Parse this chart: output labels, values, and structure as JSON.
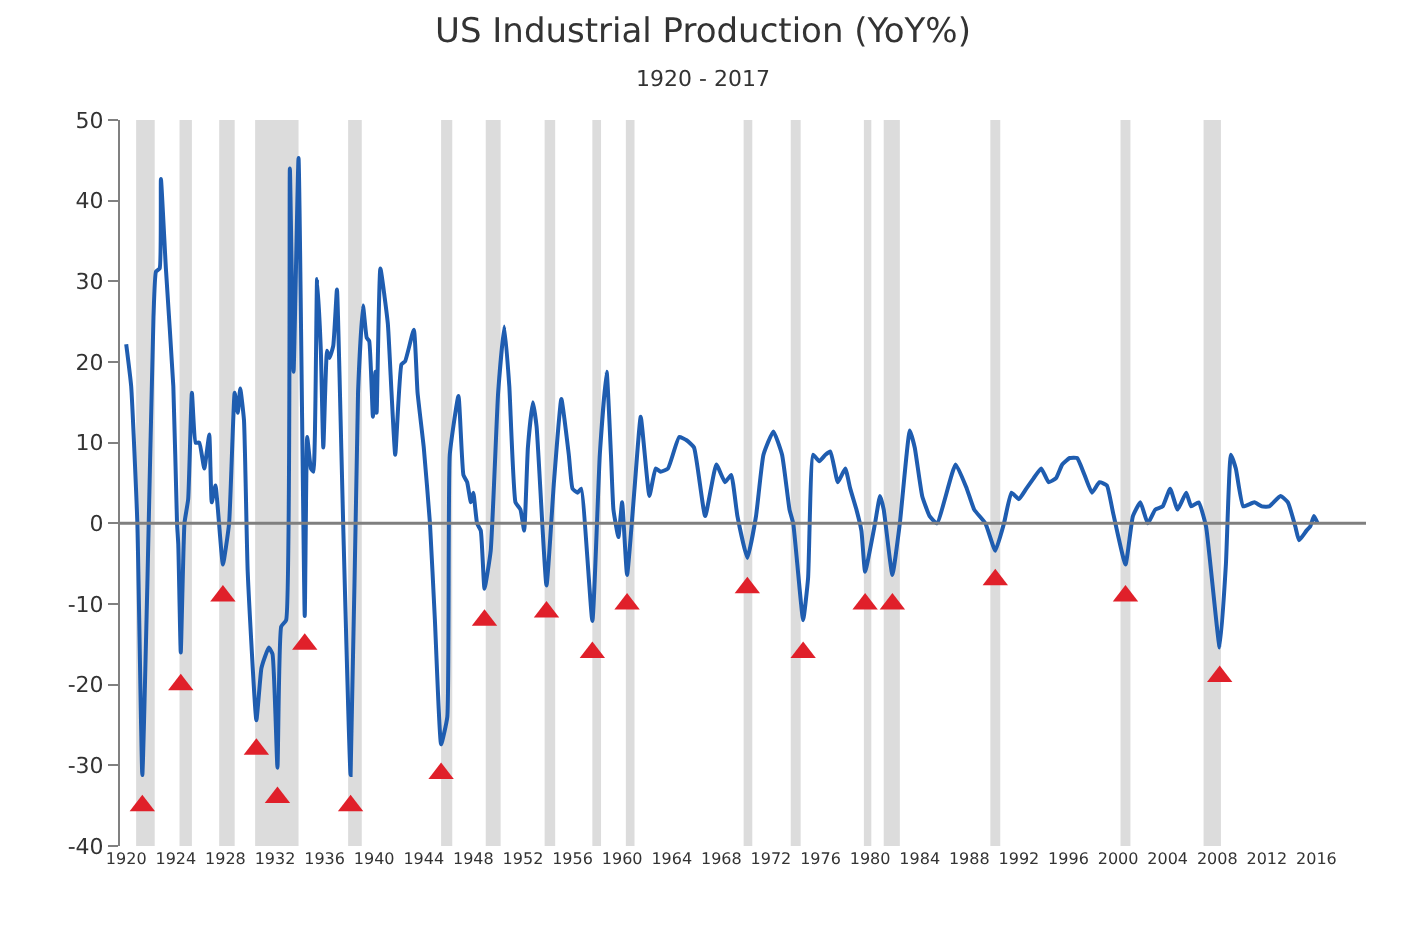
{
  "chart_data": {
    "type": "line",
    "title": "US Industrial Production (YoY%)",
    "subtitle": "1920 - 2017",
    "xlim": [
      1919.5,
      2020
    ],
    "xticks": [
      1920,
      1924,
      1928,
      1932,
      1936,
      1940,
      1944,
      1948,
      1952,
      1956,
      1960,
      1964,
      1968,
      1972,
      1976,
      1980,
      1984,
      1988,
      1992,
      1996,
      2000,
      2004,
      2008,
      2012,
      2016
    ],
    "ylim": [
      -40,
      50
    ],
    "yticks": [
      -40,
      -30,
      -20,
      -10,
      0,
      10,
      20,
      30,
      40,
      50
    ],
    "grid": false,
    "series": [
      {
        "color": "#1f5db0",
        "x": [
          1920.0,
          1920.4,
          1920.9,
          1921.3,
          1921.7,
          1922.2,
          1922.4,
          1922.7,
          1922.8,
          1923.2,
          1923.8,
          1924.1,
          1924.2,
          1924.4,
          1924.7,
          1925.0,
          1925.3,
          1925.6,
          1925.9,
          1926.3,
          1926.7,
          1926.9,
          1927.2,
          1927.8,
          1928.3,
          1928.75,
          1929.0,
          1929.2,
          1929.5,
          1929.8,
          1930.5,
          1930.9,
          1931.2,
          1931.5,
          1931.8,
          1932.2,
          1932.5,
          1932.9,
          1933.2,
          1933.5,
          1933.9,
          1934.4,
          1934.6,
          1934.9,
          1935.1,
          1935.4,
          1935.7,
          1935.9,
          1936.2,
          1936.4,
          1936.7,
          1937.0,
          1937.2,
          1937.5,
          1938.1,
          1938.7,
          1939.1,
          1939.4,
          1939.6,
          1939.9,
          1940.1,
          1940.2,
          1940.5,
          1941.1,
          1941.4,
          1941.7,
          1942.2,
          1942.5,
          1943.2,
          1943.5,
          1944.0,
          1944.5,
          1944.9,
          1945.4,
          1945.9,
          1946.1,
          1946.8,
          1947.2,
          1947.5,
          1947.8,
          1948.0,
          1948.3,
          1948.6,
          1948.9,
          1949.4,
          1950.0,
          1950.5,
          1950.9,
          1951.4,
          1951.8,
          1952.1,
          1952.4,
          1952.8,
          1953.1,
          1953.9,
          1954.5,
          1955.1,
          1955.7,
          1956.0,
          1956.4,
          1956.7,
          1957.6,
          1958.2,
          1958.75,
          1959.1,
          1959.3,
          1959.7,
          1960.0,
          1960.4,
          1961.0,
          1961.5,
          1962.2,
          1962.7,
          1963.1,
          1963.7,
          1964.6,
          1965.2,
          1965.8,
          1966.7,
          1967.6,
          1968.3,
          1968.8,
          1969.3,
          1970.1,
          1970.8,
          1971.4,
          1972.2,
          1972.9,
          1973.5,
          1973.8,
          1974.6,
          1975.0,
          1975.4,
          1975.9,
          1976.4,
          1976.8,
          1977.4,
          1978.0,
          1978.4,
          1978.9,
          1979.3,
          1979.6,
          1980.4,
          1980.8,
          1981.1,
          1981.8,
          1982.4,
          1983.2,
          1983.6,
          1984.2,
          1984.8,
          1985.4,
          1986.9,
          1987.8,
          1988.4,
          1989.3,
          1990.1,
          1990.8,
          1991.4,
          1992.0,
          1992.6,
          1993.2,
          1993.8,
          1994.4,
          1995.0,
          1995.5,
          1996.1,
          1996.7,
          1997.3,
          1997.9,
          1998.5,
          1999.1,
          1999.6,
          2000.6,
          2001.2,
          2001.8,
          2002.4,
          2003.0,
          2003.6,
          2004.2,
          2004.8,
          2005.5,
          2005.9,
          2006.5,
          2007.1,
          2008.2,
          2008.7,
          2009.1,
          2009.5,
          2010.1,
          2011.0,
          2011.6,
          2012.2,
          2013.1,
          2013.7,
          2014.3,
          2014.6,
          2015.2,
          2015.5,
          2015.8,
          2016.1
        ],
        "values": [
          22.2,
          17,
          0,
          -31.2,
          -8,
          25.6,
          31.2,
          31.6,
          42.7,
          31.6,
          17,
          0,
          -2.6,
          -16,
          0,
          3,
          16.2,
          10,
          10,
          6.8,
          11,
          2.6,
          4.7,
          -5.1,
          0,
          16.2,
          13.7,
          16.7,
          12.8,
          -6,
          -24.4,
          -18,
          -16.5,
          -15.4,
          -16.2,
          -30.3,
          -12.8,
          -12,
          44,
          18.8,
          45.3,
          -11.5,
          10.7,
          6.8,
          6.4,
          30.3,
          21.4,
          9.4,
          21.4,
          20.5,
          22,
          29,
          18.8,
          0,
          -31.2,
          16.2,
          27,
          23,
          22.6,
          13.2,
          18.8,
          13.7,
          31.6,
          24.8,
          16.2,
          8.5,
          19.7,
          20.1,
          24,
          16.2,
          9.4,
          0,
          -12,
          -27.4,
          -24,
          8.5,
          15.8,
          6,
          5.1,
          2.6,
          3.8,
          0,
          -0.9,
          -8.1,
          -3.4,
          16.2,
          24.4,
          17,
          2.6,
          1.7,
          -0.9,
          9.4,
          15,
          12,
          -7.7,
          5.1,
          15.4,
          8.5,
          4.3,
          3.8,
          4.3,
          -12.1,
          8.5,
          18.8,
          8.5,
          1.7,
          -1.7,
          2.6,
          -6.4,
          4.3,
          13.2,
          3.4,
          6.8,
          6.4,
          6.8,
          10.7,
          10.3,
          9.4,
          0.9,
          7.3,
          5.1,
          6,
          0.9,
          -4.3,
          0.9,
          8.5,
          11.4,
          8.5,
          1.7,
          0,
          -12,
          -6.8,
          8.5,
          7.7,
          8.5,
          8.9,
          5.1,
          6.8,
          4.3,
          1.7,
          -0.9,
          -6,
          0,
          3.4,
          1.7,
          -6.4,
          0,
          11.5,
          9.4,
          3.4,
          0.9,
          0,
          7.3,
          4.3,
          1.7,
          0,
          -3.4,
          0,
          3.8,
          3,
          4.3,
          5.6,
          6.8,
          5.1,
          5.6,
          7.3,
          8.1,
          8.1,
          6,
          3.8,
          5.1,
          4.7,
          1.3,
          -5.1,
          0.9,
          2.6,
          0,
          1.7,
          2.1,
          4.3,
          1.7,
          3.8,
          2.1,
          2.6,
          -0.4,
          -15.4,
          -5.1,
          8.5,
          6.8,
          2.1,
          2.6,
          2.1,
          2.1,
          3.4,
          2.6,
          -0.4,
          -2.1,
          -0.9,
          -0.4,
          0.9,
          0
        ]
      },
      {
        "type": "scatter",
        "color": "#e0202a",
        "marker": "triangle",
        "x": [
          1921.3,
          1924.4,
          1927.8,
          1930.5,
          1932.2,
          1934.4,
          1938.1,
          1945.4,
          1948.9,
          1953.9,
          1957.6,
          1960.4,
          1970.1,
          1974.6,
          1979.6,
          1981.8,
          1990.1,
          2000.6,
          2008.2
        ],
        "values": [
          -35,
          -20,
          -9,
          -28,
          -34,
          -15,
          -35,
          -31,
          -12,
          -11,
          -16,
          -10,
          -8,
          -16,
          -10,
          -10,
          -7,
          -9,
          -19
        ]
      }
    ],
    "ref_lines": [
      {
        "axis": "y",
        "value": 0,
        "color": "#7f7f7f"
      }
    ],
    "bands": [
      {
        "axis": "x",
        "from": 1920.8,
        "to": 1922.3,
        "color": "#dcdcdc"
      },
      {
        "axis": "x",
        "from": 1924.3,
        "to": 1925.3,
        "color": "#dcdcdc"
      },
      {
        "axis": "x",
        "from": 1927.5,
        "to": 1928.75,
        "color": "#dcdcdc"
      },
      {
        "axis": "x",
        "from": 1930.4,
        "to": 1933.9,
        "color": "#dcdcdc"
      },
      {
        "axis": "x",
        "from": 1937.9,
        "to": 1939.0,
        "color": "#dcdcdc"
      },
      {
        "axis": "x",
        "from": 1945.4,
        "to": 1946.3,
        "color": "#dcdcdc"
      },
      {
        "axis": "x",
        "from": 1949.0,
        "to": 1950.2,
        "color": "#dcdcdc"
      },
      {
        "axis": "x",
        "from": 1953.75,
        "to": 1954.6,
        "color": "#dcdcdc"
      },
      {
        "axis": "x",
        "from": 1957.6,
        "to": 1958.3,
        "color": "#dcdcdc"
      },
      {
        "axis": "x",
        "from": 1960.3,
        "to": 1961.0,
        "color": "#dcdcdc"
      },
      {
        "axis": "x",
        "from": 1969.8,
        "to": 1970.5,
        "color": "#dcdcdc"
      },
      {
        "axis": "x",
        "from": 1973.6,
        "to": 1974.4,
        "color": "#dcdcdc"
      },
      {
        "axis": "x",
        "from": 1979.5,
        "to": 1980.1,
        "color": "#dcdcdc"
      },
      {
        "axis": "x",
        "from": 1981.1,
        "to": 1982.4,
        "color": "#dcdcdc"
      },
      {
        "axis": "x",
        "from": 1989.7,
        "to": 1990.5,
        "color": "#dcdcdc"
      },
      {
        "axis": "x",
        "from": 2000.2,
        "to": 2001.0,
        "color": "#dcdcdc"
      },
      {
        "axis": "x",
        "from": 2006.9,
        "to": 2008.3,
        "color": "#dcdcdc"
      }
    ]
  }
}
